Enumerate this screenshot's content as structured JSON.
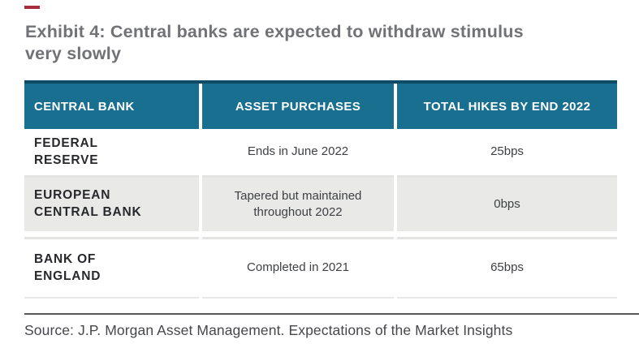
{
  "title": {
    "line1": "Exhibit 4: Central banks are expected to withdraw stimulus",
    "line2": "very slowly"
  },
  "table": {
    "columns": {
      "central_bank": "CENTRAL BANK",
      "asset_purchases": "ASSET PURCHASES",
      "total_hikes": "TOTAL HIKES BY END 2022"
    },
    "rows": [
      {
        "central_bank": "FEDERAL RESERVE",
        "asset_purchases": "Ends in June 2022",
        "total_hikes": "25bps"
      },
      {
        "central_bank": "EUROPEAN CENTRAL BANK",
        "asset_purchases": "Tapered but maintained throughout 2022",
        "total_hikes": "0bps"
      },
      {
        "central_bank": "BANK OF ENGLAND",
        "asset_purchases": "Completed in 2021",
        "total_hikes": "65bps"
      }
    ]
  },
  "source": "Source: J.P. Morgan Asset Management. Expectations of the Market Insights",
  "colors": {
    "accent_dash": "#aa2b39",
    "header_bg": "#186f90",
    "header_top_border": "#0d4b66",
    "alt_row_bg": "#e9e9e8",
    "row_rule": "#e4e4e3",
    "title_text": "#717276",
    "divider": "#57585c"
  }
}
